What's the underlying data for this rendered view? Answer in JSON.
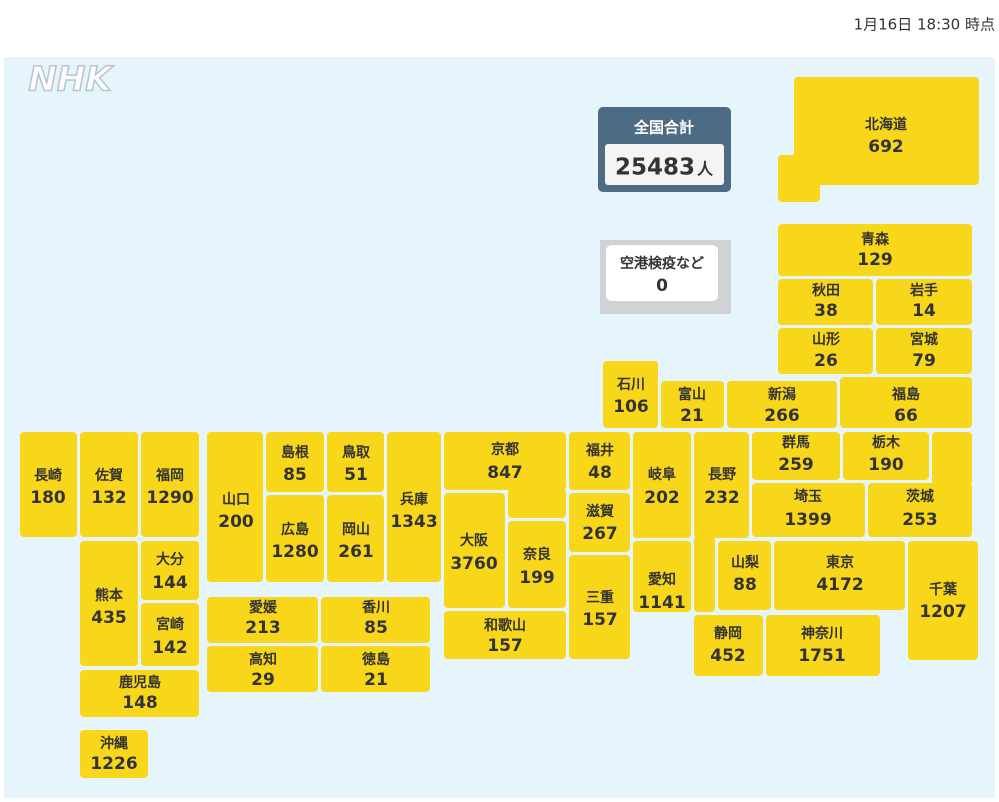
{
  "timestamp": "1月16日 18:30 時点",
  "logo": "NHK",
  "total": {
    "label": "全国合計",
    "value": 25483,
    "unit": "人"
  },
  "airport": {
    "label": "空港検疫など",
    "value": 0
  },
  "prefectures": [
    {
      "name": "北海道",
      "value": 692
    },
    {
      "name": "青森",
      "value": 129
    },
    {
      "name": "秋田",
      "value": 38
    },
    {
      "name": "岩手",
      "value": 14
    },
    {
      "name": "山形",
      "value": 26
    },
    {
      "name": "宮城",
      "value": 79
    },
    {
      "name": "石川",
      "value": 106
    },
    {
      "name": "富山",
      "value": 21
    },
    {
      "name": "新潟",
      "value": 266
    },
    {
      "name": "福島",
      "value": 66
    },
    {
      "name": "長崎",
      "value": 180
    },
    {
      "name": "佐賀",
      "value": 132
    },
    {
      "name": "福岡",
      "value": 1290
    },
    {
      "name": "山口",
      "value": 200
    },
    {
      "name": "島根",
      "value": 85
    },
    {
      "name": "鳥取",
      "value": 51
    },
    {
      "name": "広島",
      "value": 1280
    },
    {
      "name": "岡山",
      "value": 261
    },
    {
      "name": "兵庫",
      "value": 1343
    },
    {
      "name": "京都",
      "value": 847
    },
    {
      "name": "大阪",
      "value": 3760
    },
    {
      "name": "奈良",
      "value": 199
    },
    {
      "name": "和歌山",
      "value": 157
    },
    {
      "name": "福井",
      "value": 48
    },
    {
      "name": "滋賀",
      "value": 267
    },
    {
      "name": "三重",
      "value": 157
    },
    {
      "name": "岐阜",
      "value": 202
    },
    {
      "name": "愛知",
      "value": 1141
    },
    {
      "name": "長野",
      "value": 232
    },
    {
      "name": "群馬",
      "value": 259
    },
    {
      "name": "栃木",
      "value": 190
    },
    {
      "name": "茨城",
      "value": 253
    },
    {
      "name": "埼玉",
      "value": 1399
    },
    {
      "name": "山梨",
      "value": 88
    },
    {
      "name": "東京",
      "value": 4172
    },
    {
      "name": "千葉",
      "value": 1207
    },
    {
      "name": "静岡",
      "value": 452
    },
    {
      "name": "神奈川",
      "value": 1751
    },
    {
      "name": "愛媛",
      "value": 213
    },
    {
      "name": "香川",
      "value": 85
    },
    {
      "name": "高知",
      "value": 29
    },
    {
      "name": "徳島",
      "value": 21
    },
    {
      "name": "熊本",
      "value": 435
    },
    {
      "name": "大分",
      "value": 144
    },
    {
      "name": "宮崎",
      "value": 142
    },
    {
      "name": "鹿児島",
      "value": 148
    },
    {
      "name": "沖縄",
      "value": 1226
    }
  ]
}
